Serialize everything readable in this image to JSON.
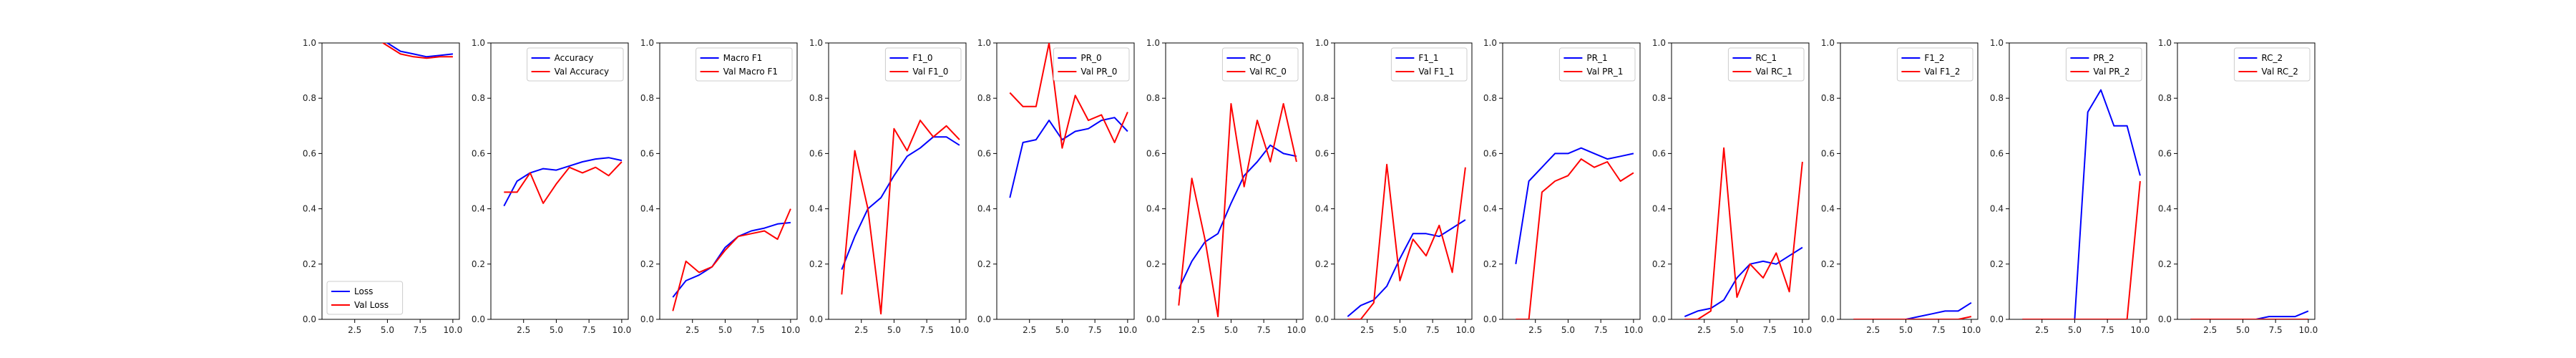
{
  "colors": {
    "train": "#0000ff",
    "val": "#ff0000"
  },
  "chart_data": [
    {
      "type": "line",
      "x": [
        1,
        2,
        3,
        4,
        5,
        6,
        7,
        8,
        9,
        10
      ],
      "xlim": [
        0,
        10.5
      ],
      "ylim": [
        0,
        1.0
      ],
      "xticks": [
        "2.5",
        "5.0",
        "7.5",
        "10.0"
      ],
      "yticks": [
        "0.0",
        "0.2",
        "0.4",
        "0.6",
        "0.8",
        "1.0"
      ],
      "legend_loc": "lower-left",
      "series": [
        {
          "name": "Loss",
          "role": "train",
          "values": [
            1.12,
            1.09,
            1.05,
            1.03,
            1.0,
            0.97,
            0.96,
            0.95,
            0.955,
            0.96
          ]
        },
        {
          "name": "Val Loss",
          "role": "val",
          "values": [
            1.1,
            1.08,
            1.05,
            1.02,
            0.99,
            0.96,
            0.95,
            0.945,
            0.95,
            0.95
          ]
        }
      ]
    },
    {
      "type": "line",
      "x": [
        1,
        2,
        3,
        4,
        5,
        6,
        7,
        8,
        9,
        10
      ],
      "xlim": [
        0,
        10.5
      ],
      "ylim": [
        0,
        1.0
      ],
      "xticks": [
        "2.5",
        "5.0",
        "7.5",
        "10.0"
      ],
      "yticks": [
        "0.0",
        "0.2",
        "0.4",
        "0.6",
        "0.8",
        "1.0"
      ],
      "legend_loc": "upper-right",
      "series": [
        {
          "name": "Accuracy",
          "role": "train",
          "values": [
            0.41,
            0.5,
            0.53,
            0.545,
            0.54,
            0.555,
            0.57,
            0.58,
            0.585,
            0.575
          ]
        },
        {
          "name": "Val Accuracy",
          "role": "val",
          "values": [
            0.46,
            0.46,
            0.53,
            0.42,
            0.49,
            0.55,
            0.53,
            0.55,
            0.52,
            0.57
          ]
        }
      ]
    },
    {
      "type": "line",
      "x": [
        1,
        2,
        3,
        4,
        5,
        6,
        7,
        8,
        9,
        10
      ],
      "xlim": [
        0,
        10.5
      ],
      "ylim": [
        0,
        1.0
      ],
      "xticks": [
        "2.5",
        "5.0",
        "7.5",
        "10.0"
      ],
      "yticks": [
        "0.0",
        "0.2",
        "0.4",
        "0.6",
        "0.8",
        "1.0"
      ],
      "legend_loc": "upper-right",
      "series": [
        {
          "name": "Macro F1",
          "role": "train",
          "values": [
            0.08,
            0.14,
            0.16,
            0.19,
            0.26,
            0.3,
            0.32,
            0.33,
            0.345,
            0.35
          ]
        },
        {
          "name": "Val Macro F1",
          "role": "val",
          "values": [
            0.03,
            0.21,
            0.17,
            0.19,
            0.25,
            0.3,
            0.31,
            0.32,
            0.29,
            0.4
          ]
        }
      ]
    },
    {
      "type": "line",
      "x": [
        1,
        2,
        3,
        4,
        5,
        6,
        7,
        8,
        9,
        10
      ],
      "xlim": [
        0,
        10.5
      ],
      "ylim": [
        0,
        1.0
      ],
      "xticks": [
        "2.5",
        "5.0",
        "7.5",
        "10.0"
      ],
      "yticks": [
        "0.0",
        "0.2",
        "0.4",
        "0.6",
        "0.8",
        "1.0"
      ],
      "legend_loc": "upper-right",
      "series": [
        {
          "name": "F1_0",
          "role": "train",
          "values": [
            0.18,
            0.3,
            0.4,
            0.44,
            0.52,
            0.59,
            0.62,
            0.66,
            0.66,
            0.63
          ]
        },
        {
          "name": "Val F1_0",
          "role": "val",
          "values": [
            0.09,
            0.61,
            0.4,
            0.02,
            0.69,
            0.61,
            0.72,
            0.66,
            0.7,
            0.65
          ]
        }
      ]
    },
    {
      "type": "line",
      "x": [
        1,
        2,
        3,
        4,
        5,
        6,
        7,
        8,
        9,
        10
      ],
      "xlim": [
        0,
        10.5
      ],
      "ylim": [
        0,
        1.0
      ],
      "xticks": [
        "2.5",
        "5.0",
        "7.5",
        "10.0"
      ],
      "yticks": [
        "0.0",
        "0.2",
        "0.4",
        "0.6",
        "0.8",
        "1.0"
      ],
      "legend_loc": "upper-right",
      "series": [
        {
          "name": "PR_0",
          "role": "train",
          "values": [
            0.44,
            0.64,
            0.65,
            0.72,
            0.65,
            0.68,
            0.69,
            0.72,
            0.73,
            0.68
          ]
        },
        {
          "name": "Val PR_0",
          "role": "val",
          "values": [
            0.82,
            0.77,
            0.77,
            1.0,
            0.62,
            0.81,
            0.72,
            0.74,
            0.64,
            0.75
          ]
        }
      ]
    },
    {
      "type": "line",
      "x": [
        1,
        2,
        3,
        4,
        5,
        6,
        7,
        8,
        9,
        10
      ],
      "xlim": [
        0,
        10.5
      ],
      "ylim": [
        0,
        1.0
      ],
      "xticks": [
        "2.5",
        "5.0",
        "7.5",
        "10.0"
      ],
      "yticks": [
        "0.0",
        "0.2",
        "0.4",
        "0.6",
        "0.8",
        "1.0"
      ],
      "legend_loc": "upper-right",
      "series": [
        {
          "name": "RC_0",
          "role": "train",
          "values": [
            0.11,
            0.21,
            0.28,
            0.31,
            0.42,
            0.52,
            0.57,
            0.63,
            0.6,
            0.59
          ]
        },
        {
          "name": "Val RC_0",
          "role": "val",
          "values": [
            0.05,
            0.51,
            0.29,
            0.01,
            0.78,
            0.48,
            0.72,
            0.57,
            0.78,
            0.57
          ]
        }
      ]
    },
    {
      "type": "line",
      "x": [
        1,
        2,
        3,
        4,
        5,
        6,
        7,
        8,
        9,
        10
      ],
      "xlim": [
        0,
        10.5
      ],
      "ylim": [
        0,
        1.0
      ],
      "xticks": [
        "2.5",
        "5.0",
        "7.5",
        "10.0"
      ],
      "yticks": [
        "0.0",
        "0.2",
        "0.4",
        "0.6",
        "0.8",
        "1.0"
      ],
      "legend_loc": "upper-right",
      "series": [
        {
          "name": "F1_1",
          "role": "train",
          "values": [
            0.01,
            0.05,
            0.07,
            0.12,
            0.22,
            0.31,
            0.31,
            0.3,
            0.33,
            0.36
          ]
        },
        {
          "name": "Val F1_1",
          "role": "val",
          "values": [
            0.0,
            0.0,
            0.06,
            0.56,
            0.14,
            0.29,
            0.23,
            0.34,
            0.17,
            0.55
          ]
        }
      ]
    },
    {
      "type": "line",
      "x": [
        1,
        2,
        3,
        4,
        5,
        6,
        7,
        8,
        9,
        10
      ],
      "xlim": [
        0,
        10.5
      ],
      "ylim": [
        0,
        1.0
      ],
      "xticks": [
        "2.5",
        "5.0",
        "7.5",
        "10.0"
      ],
      "yticks": [
        "0.0",
        "0.2",
        "0.4",
        "0.6",
        "0.8",
        "1.0"
      ],
      "legend_loc": "upper-right",
      "series": [
        {
          "name": "PR_1",
          "role": "train",
          "values": [
            0.2,
            0.5,
            0.55,
            0.6,
            0.6,
            0.62,
            0.6,
            0.58,
            0.59,
            0.6
          ]
        },
        {
          "name": "Val PR_1",
          "role": "val",
          "values": [
            0.0,
            0.0,
            0.46,
            0.5,
            0.52,
            0.58,
            0.55,
            0.57,
            0.5,
            0.53
          ]
        }
      ]
    },
    {
      "type": "line",
      "x": [
        1,
        2,
        3,
        4,
        5,
        6,
        7,
        8,
        9,
        10
      ],
      "xlim": [
        0,
        10.5
      ],
      "ylim": [
        0,
        1.0
      ],
      "xticks": [
        "2.5",
        "5.0",
        "7.5",
        "10.0"
      ],
      "yticks": [
        "0.0",
        "0.2",
        "0.4",
        "0.6",
        "0.8",
        "1.0"
      ],
      "legend_loc": "upper-right",
      "series": [
        {
          "name": "RC_1",
          "role": "train",
          "values": [
            0.01,
            0.03,
            0.04,
            0.07,
            0.15,
            0.2,
            0.21,
            0.2,
            0.23,
            0.26
          ]
        },
        {
          "name": "Val RC_1",
          "role": "val",
          "values": [
            0.0,
            0.0,
            0.03,
            0.62,
            0.08,
            0.2,
            0.15,
            0.24,
            0.1,
            0.57
          ]
        }
      ]
    },
    {
      "type": "line",
      "x": [
        1,
        2,
        3,
        4,
        5,
        6,
        7,
        8,
        9,
        10
      ],
      "xlim": [
        0,
        10.5
      ],
      "ylim": [
        0,
        1.0
      ],
      "xticks": [
        "2.5",
        "5.0",
        "7.5",
        "10.0"
      ],
      "yticks": [
        "0.0",
        "0.2",
        "0.4",
        "0.6",
        "0.8",
        "1.0"
      ],
      "legend_loc": "upper-right",
      "series": [
        {
          "name": "F1_2",
          "role": "train",
          "values": [
            0.0,
            0.0,
            0.0,
            0.0,
            0.0,
            0.01,
            0.02,
            0.03,
            0.03,
            0.06
          ]
        },
        {
          "name": "Val F1_2",
          "role": "val",
          "values": [
            0.0,
            0.0,
            0.0,
            0.0,
            0.0,
            0.0,
            0.0,
            0.0,
            0.0,
            0.01
          ]
        }
      ]
    },
    {
      "type": "line",
      "x": [
        1,
        2,
        3,
        4,
        5,
        6,
        7,
        8,
        9,
        10
      ],
      "xlim": [
        0,
        10.5
      ],
      "ylim": [
        0,
        1.0
      ],
      "xticks": [
        "2.5",
        "5.0",
        "7.5",
        "10.0"
      ],
      "yticks": [
        "0.0",
        "0.2",
        "0.4",
        "0.6",
        "0.8",
        "1.0"
      ],
      "legend_loc": "upper-right",
      "series": [
        {
          "name": "PR_2",
          "role": "train",
          "values": [
            0.0,
            0.0,
            0.0,
            0.0,
            0.0,
            0.75,
            0.83,
            0.7,
            0.7,
            0.52
          ]
        },
        {
          "name": "Val PR_2",
          "role": "val",
          "values": [
            0.0,
            0.0,
            0.0,
            0.0,
            0.0,
            0.0,
            0.0,
            0.0,
            0.0,
            0.5
          ]
        }
      ]
    },
    {
      "type": "line",
      "x": [
        1,
        2,
        3,
        4,
        5,
        6,
        7,
        8,
        9,
        10
      ],
      "xlim": [
        0,
        10.5
      ],
      "ylim": [
        0,
        1.0
      ],
      "xticks": [
        "2.5",
        "5.0",
        "7.5",
        "10.0"
      ],
      "yticks": [
        "0.0",
        "0.2",
        "0.4",
        "0.6",
        "0.8",
        "1.0"
      ],
      "legend_loc": "upper-right",
      "series": [
        {
          "name": "RC_2",
          "role": "train",
          "values": [
            0.0,
            0.0,
            0.0,
            0.0,
            0.0,
            0.0,
            0.01,
            0.01,
            0.01,
            0.03
          ]
        },
        {
          "name": "Val RC_2",
          "role": "val",
          "values": [
            0.0,
            0.0,
            0.0,
            0.0,
            0.0,
            0.0,
            0.0,
            0.0,
            0.0,
            0.0
          ]
        }
      ]
    }
  ]
}
